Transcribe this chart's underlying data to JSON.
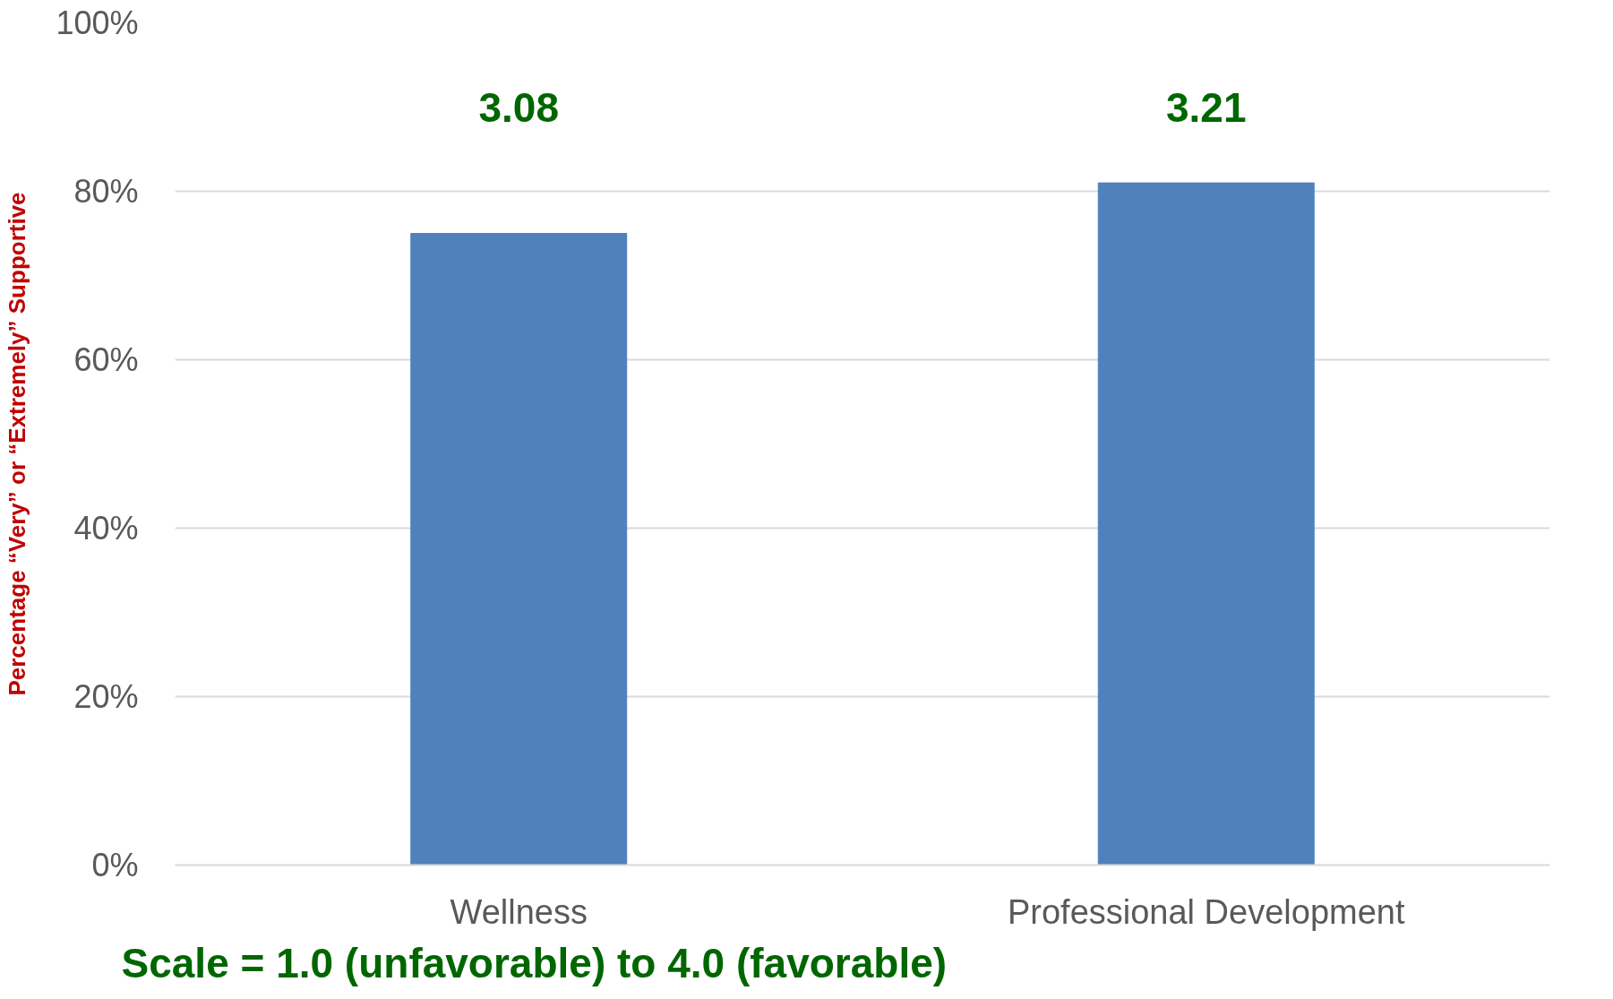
{
  "chart_data": {
    "type": "bar",
    "categories": [
      "Wellness",
      "Professional Development"
    ],
    "values": [
      75,
      81
    ],
    "color": "#4f81bd",
    "ylabel": "Percentage “Very” or “Extremely” Supportive",
    "ylim": [
      0,
      100
    ],
    "yticks": [
      {
        "value": 0,
        "label": "0%"
      },
      {
        "value": 20,
        "label": "20%"
      },
      {
        "value": 40,
        "label": "40%"
      },
      {
        "value": 60,
        "label": "60%"
      },
      {
        "value": 80,
        "label": "80%"
      },
      {
        "value": 100,
        "label": "100%"
      }
    ],
    "grid": "y",
    "annotations": [
      "3.08",
      "3.21",
      "Scale = 1.0 (unfavorable) to 4.0 (favorable)"
    ]
  }
}
